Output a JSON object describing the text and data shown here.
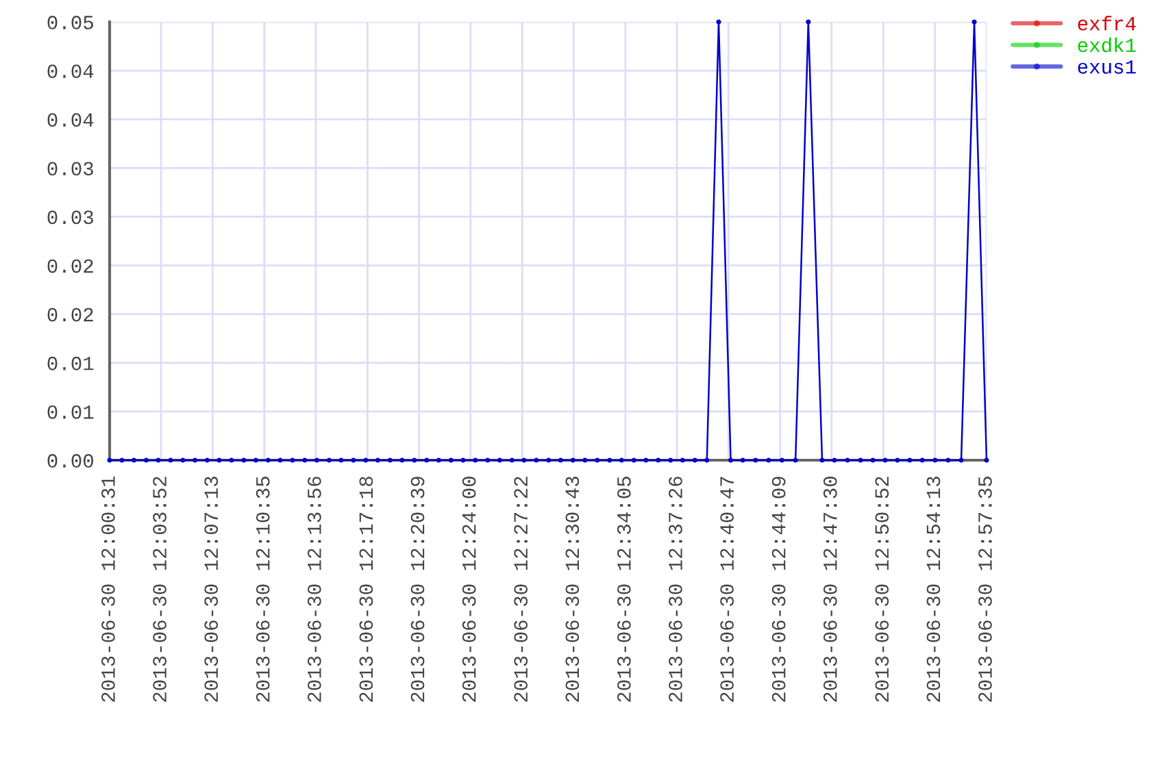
{
  "chart_data": {
    "type": "line",
    "x": [
      "2013-06-30T12:00:31",
      "2013-06-30T12:01:19",
      "2013-06-30T12:02:06",
      "2013-06-30T12:02:54",
      "2013-06-30T12:03:41",
      "2013-06-30T12:04:29",
      "2013-06-30T12:05:17",
      "2013-06-30T12:06:04",
      "2013-06-30T12:06:52",
      "2013-06-30T12:07:39",
      "2013-06-30T12:08:27",
      "2013-06-30T12:09:15",
      "2013-06-30T12:10:02",
      "2013-06-30T12:10:50",
      "2013-06-30T12:11:37",
      "2013-06-30T12:12:25",
      "2013-06-30T12:13:13",
      "2013-06-30T12:14:00",
      "2013-06-30T12:14:48",
      "2013-06-30T12:15:35",
      "2013-06-30T12:16:23",
      "2013-06-30T12:17:11",
      "2013-06-30T12:17:58",
      "2013-06-30T12:18:46",
      "2013-06-30T12:19:33",
      "2013-06-30T12:20:21",
      "2013-06-30T12:21:09",
      "2013-06-30T12:21:56",
      "2013-06-30T12:22:44",
      "2013-06-30T12:23:31",
      "2013-06-30T12:24:19",
      "2013-06-30T12:25:07",
      "2013-06-30T12:25:54",
      "2013-06-30T12:26:42",
      "2013-06-30T12:27:29",
      "2013-06-30T12:28:17",
      "2013-06-30T12:29:05",
      "2013-06-30T12:29:52",
      "2013-06-30T12:30:40",
      "2013-06-30T12:31:27",
      "2013-06-30T12:32:15",
      "2013-06-30T12:33:03",
      "2013-06-30T12:33:50",
      "2013-06-30T12:34:38",
      "2013-06-30T12:35:25",
      "2013-06-30T12:36:13",
      "2013-06-30T12:37:01",
      "2013-06-30T12:37:48",
      "2013-06-30T12:38:36",
      "2013-06-30T12:39:23",
      "2013-06-30T12:40:09",
      "2013-06-30T12:40:56",
      "2013-06-30T12:41:43",
      "2013-06-30T12:42:33",
      "2013-06-30T12:43:24",
      "2013-06-30T12:44:16",
      "2013-06-30T12:45:09",
      "2013-06-30T12:45:59",
      "2013-06-30T12:46:53",
      "2013-06-30T12:47:41",
      "2013-06-30T12:48:32",
      "2013-06-30T12:49:23",
      "2013-06-30T12:50:11",
      "2013-06-30T12:50:59",
      "2013-06-30T12:51:47",
      "2013-06-30T12:52:35",
      "2013-06-30T12:53:24",
      "2013-06-30T12:54:14",
      "2013-06-30T12:55:05",
      "2013-06-30T12:55:56",
      "2013-06-30T12:56:47",
      "2013-06-30T12:57:35"
    ],
    "series": [
      {
        "name": "exfr4",
        "color": "#dd0000",
        "values": [
          null,
          null,
          null,
          null,
          null,
          null,
          null,
          null,
          null,
          null,
          null,
          null,
          null,
          null,
          null,
          null,
          null,
          null,
          null,
          null,
          null,
          null,
          null,
          null,
          null,
          null,
          null,
          null,
          null,
          null,
          null,
          null,
          null,
          null,
          null,
          null,
          null,
          null,
          null,
          null,
          null,
          null,
          null,
          null,
          null,
          null,
          null,
          null,
          null,
          null,
          null,
          null,
          null,
          null,
          null,
          null,
          null,
          null,
          null,
          null,
          null,
          null,
          null,
          null,
          null,
          null,
          null,
          null,
          null,
          null,
          null,
          null
        ]
      },
      {
        "name": "exdk1",
        "color": "#00cc00",
        "values": [
          null,
          null,
          null,
          null,
          null,
          null,
          null,
          null,
          null,
          null,
          null,
          null,
          null,
          null,
          null,
          null,
          null,
          null,
          null,
          null,
          null,
          null,
          null,
          null,
          null,
          null,
          null,
          null,
          null,
          null,
          null,
          null,
          null,
          null,
          null,
          null,
          null,
          null,
          null,
          null,
          null,
          null,
          null,
          null,
          null,
          null,
          null,
          null,
          null,
          null,
          null,
          null,
          null,
          null,
          null,
          null,
          null,
          null,
          null,
          null,
          null,
          null,
          null,
          null,
          null,
          null,
          null,
          null,
          null,
          null,
          null,
          null
        ]
      },
      {
        "name": "exus1",
        "color": "#0000cc",
        "values": [
          0,
          0,
          0,
          0,
          0,
          0,
          0,
          0,
          0,
          0,
          0,
          0,
          0,
          0,
          0,
          0,
          0,
          0,
          0,
          0,
          0,
          0,
          0,
          0,
          0,
          0,
          0,
          0,
          0,
          0,
          0,
          0,
          0,
          0,
          0,
          0,
          0,
          0,
          0,
          0,
          0,
          0,
          0,
          0,
          0,
          0,
          0,
          0,
          0,
          0,
          0.05,
          0,
          0,
          0,
          0,
          0,
          0,
          0.05,
          0,
          0,
          0,
          0,
          0,
          0,
          0,
          0,
          0,
          0,
          0,
          0,
          0.05,
          0
        ]
      }
    ],
    "xlim": [
      "2013-06-30T12:00:31",
      "2013-06-30T12:57:35"
    ],
    "xticks": [
      {
        "value": "2013-06-30T12:00:31",
        "label": "2013-06-30 12:00:31"
      },
      {
        "value": "2013-06-30T12:03:52",
        "label": "2013-06-30 12:03:52"
      },
      {
        "value": "2013-06-30T12:07:13",
        "label": "2013-06-30 12:07:13"
      },
      {
        "value": "2013-06-30T12:10:35",
        "label": "2013-06-30 12:10:35"
      },
      {
        "value": "2013-06-30T12:13:56",
        "label": "2013-06-30 12:13:56"
      },
      {
        "value": "2013-06-30T12:17:18",
        "label": "2013-06-30 12:17:18"
      },
      {
        "value": "2013-06-30T12:20:39",
        "label": "2013-06-30 12:20:39"
      },
      {
        "value": "2013-06-30T12:24:00",
        "label": "2013-06-30 12:24:00"
      },
      {
        "value": "2013-06-30T12:27:22",
        "label": "2013-06-30 12:27:22"
      },
      {
        "value": "2013-06-30T12:30:43",
        "label": "2013-06-30 12:30:43"
      },
      {
        "value": "2013-06-30T12:34:05",
        "label": "2013-06-30 12:34:05"
      },
      {
        "value": "2013-06-30T12:37:26",
        "label": "2013-06-30 12:37:26"
      },
      {
        "value": "2013-06-30T12:40:47",
        "label": "2013-06-30 12:40:47"
      },
      {
        "value": "2013-06-30T12:44:09",
        "label": "2013-06-30 12:44:09"
      },
      {
        "value": "2013-06-30T12:47:30",
        "label": "2013-06-30 12:47:30"
      },
      {
        "value": "2013-06-30T12:50:52",
        "label": "2013-06-30 12:50:52"
      },
      {
        "value": "2013-06-30T12:54:13",
        "label": "2013-06-30 12:54:13"
      },
      {
        "value": "2013-06-30T12:57:35",
        "label": "2013-06-30 12:57:35"
      }
    ],
    "ylim": [
      0,
      0.05
    ],
    "yticks": [
      {
        "value": 0,
        "label": "0.00"
      },
      {
        "value": 0.00556,
        "label": "0.01"
      },
      {
        "value": 0.01111,
        "label": "0.01"
      },
      {
        "value": 0.01667,
        "label": "0.02"
      },
      {
        "value": 0.02222,
        "label": "0.02"
      },
      {
        "value": 0.02778,
        "label": "0.03"
      },
      {
        "value": 0.03333,
        "label": "0.03"
      },
      {
        "value": 0.03889,
        "label": "0.04"
      },
      {
        "value": 0.04444,
        "label": "0.04"
      },
      {
        "value": 0.05,
        "label": "0.05"
      }
    ],
    "grid": true,
    "legend": "top right",
    "marker": "circle"
  }
}
